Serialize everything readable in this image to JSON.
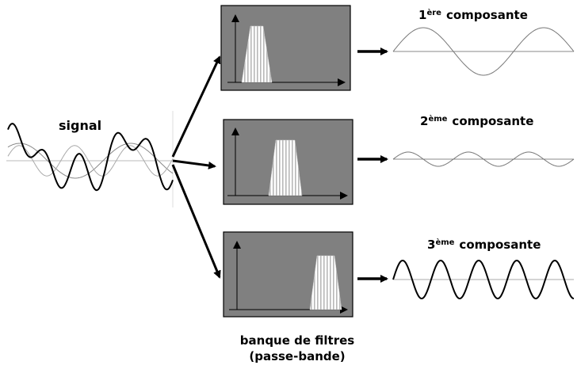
{
  "signal": {
    "label": "signal"
  },
  "components": [
    {
      "num": "1",
      "sup": "ère",
      "word": "composante"
    },
    {
      "num": "2",
      "sup": "ème",
      "word": "composante"
    },
    {
      "num": "3",
      "sup": "ème",
      "word": "composante"
    }
  ],
  "caption": {
    "line1": "banque de filtres",
    "line2": "(passe-bande)"
  }
}
